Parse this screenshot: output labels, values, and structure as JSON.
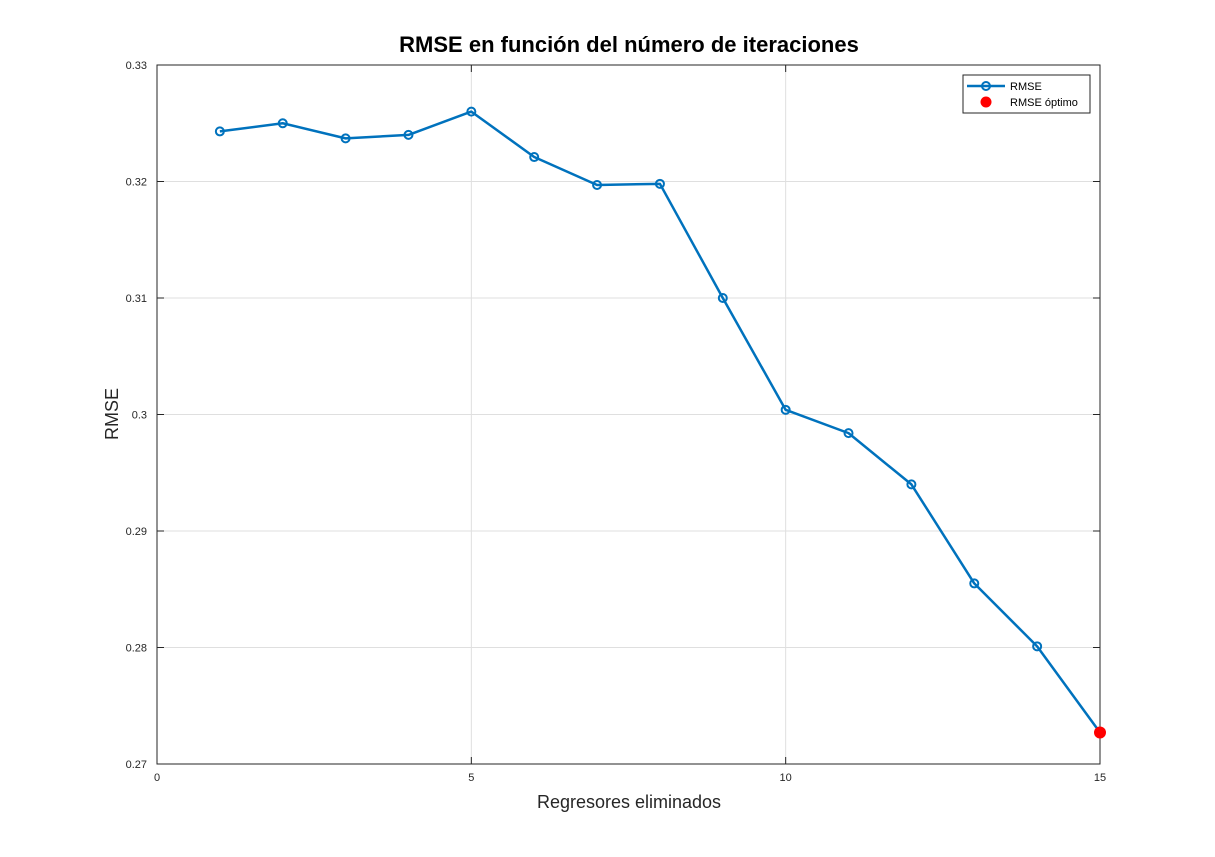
{
  "chart_data": {
    "type": "line",
    "title": "RMSE en función del número de iteraciones",
    "xlabel": "Regresores eliminados",
    "ylabel": "RMSE",
    "xlim": [
      0,
      15
    ],
    "ylim": [
      0.27,
      0.33
    ],
    "xticks": [
      0,
      5,
      10,
      15
    ],
    "yticks": [
      0.27,
      0.28,
      0.29,
      0.3,
      0.31,
      0.32,
      0.33
    ],
    "xtick_labels": [
      "0",
      "5",
      "10",
      "15"
    ],
    "ytick_labels": [
      "0.27",
      "0.28",
      "0.29",
      "0.3",
      "0.31",
      "0.32",
      "0.33"
    ],
    "grid": true,
    "legend_position": "top-right",
    "series": [
      {
        "name": "RMSE",
        "color": "#0072bd",
        "marker": "circle-open",
        "x": [
          1,
          2,
          3,
          4,
          5,
          6,
          7,
          8,
          9,
          10,
          11,
          12,
          13,
          14,
          15
        ],
        "y": [
          0.3243,
          0.325,
          0.3237,
          0.324,
          0.326,
          0.3221,
          0.3197,
          0.3198,
          0.31,
          0.3004,
          0.2984,
          0.294,
          0.2855,
          0.2801,
          0.2727
        ]
      },
      {
        "name": "RMSE óptimo",
        "color": "#ff0000",
        "marker": "circle-filled",
        "x": [
          15
        ],
        "y": [
          0.2727
        ]
      }
    ]
  }
}
